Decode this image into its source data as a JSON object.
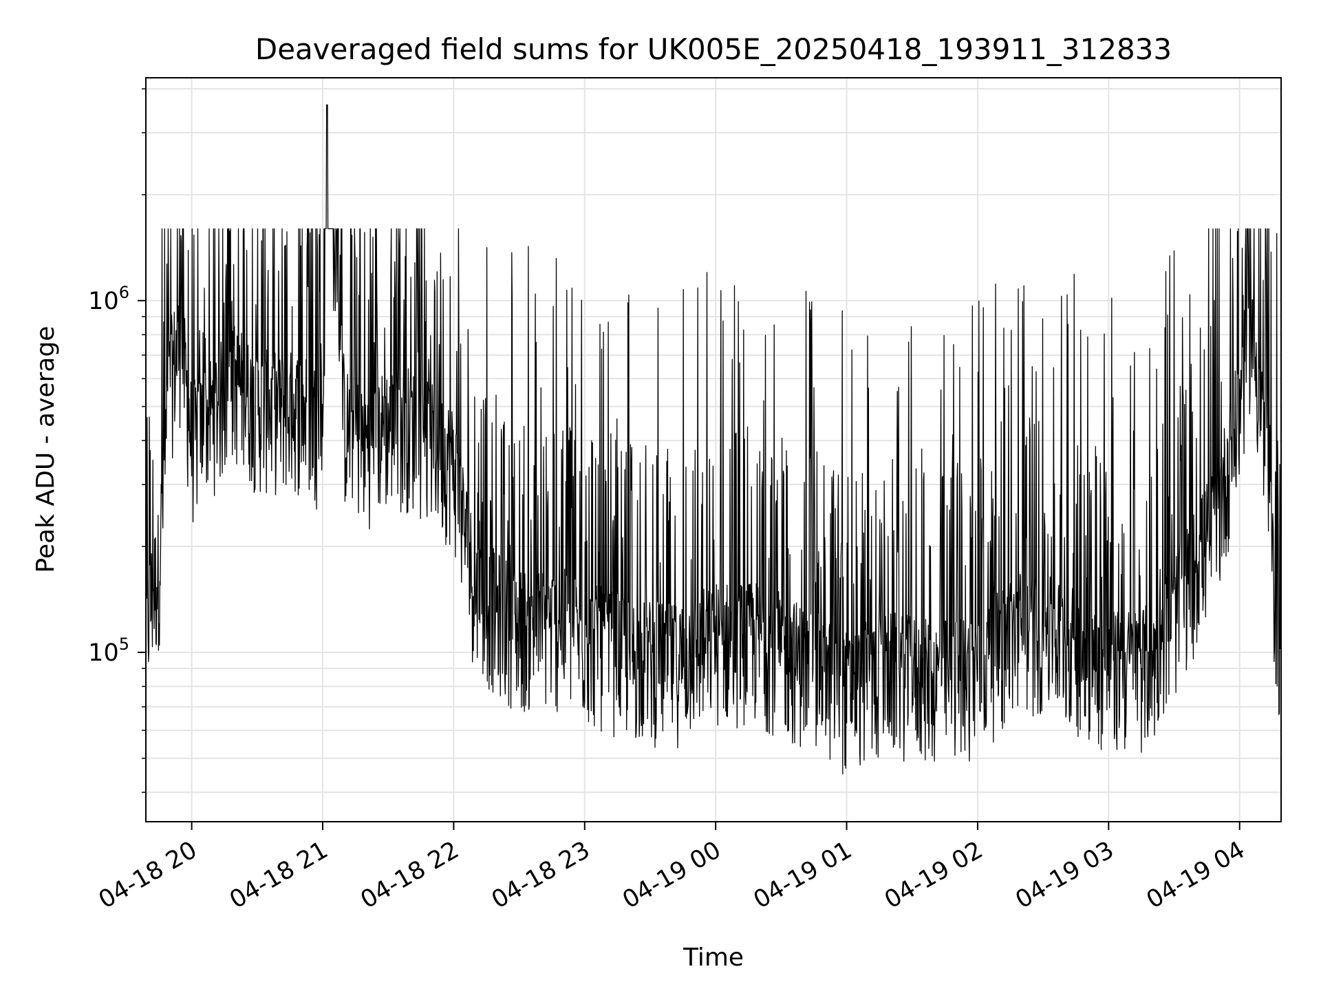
{
  "chart_data": {
    "type": "line",
    "title": "Deaveraged field sums for UK005E_20250418_193911_312833",
    "xlabel": "Time",
    "ylabel": "Peak ADU - average",
    "yscale": "log",
    "ylim": [
      33000,
      4300000
    ],
    "xlim": [
      "04-18 19:39",
      "04-19 04:19"
    ],
    "grid": true,
    "line_color": "#000000",
    "x_ticks": [
      {
        "value": "04-18 20:00",
        "label": "04-18 20"
      },
      {
        "value": "04-18 21:00",
        "label": "04-18 21"
      },
      {
        "value": "04-18 22:00",
        "label": "04-18 22"
      },
      {
        "value": "04-18 23:00",
        "label": "04-18 23"
      },
      {
        "value": "04-19 00:00",
        "label": "04-19 00"
      },
      {
        "value": "04-19 01:00",
        "label": "04-19 01"
      },
      {
        "value": "04-19 02:00",
        "label": "04-19 02"
      },
      {
        "value": "04-19 03:00",
        "label": "04-19 03"
      },
      {
        "value": "04-19 04:00",
        "label": "04-19 04"
      }
    ],
    "y_ticks": [
      {
        "value": 100000,
        "base": "10",
        "exp": "5"
      },
      {
        "value": 1000000,
        "base": "10",
        "exp": "6"
      }
    ],
    "series": [
      {
        "x": [
          "04-18 19:39",
          "04-18 19:45",
          "04-18 19:50",
          "04-18 19:55",
          "04-18 20:00",
          "04-18 20:10",
          "04-18 20:20",
          "04-18 20:30",
          "04-18 20:40",
          "04-18 20:50",
          "04-18 21:00",
          "04-18 21:02",
          "04-18 21:10",
          "04-18 21:20",
          "04-18 21:30",
          "04-18 21:40",
          "04-18 21:50",
          "04-18 22:00",
          "04-18 22:10",
          "04-18 22:30",
          "04-18 22:50",
          "04-18 23:00",
          "04-18 23:20",
          "04-18 23:40",
          "04-19 00:00",
          "04-19 00:20",
          "04-19 00:40",
          "04-19 01:00",
          "04-19 01:20",
          "04-19 01:40",
          "04-19 02:00",
          "04-19 02:20",
          "04-19 02:40",
          "04-19 03:00",
          "04-19 03:20",
          "04-19 03:40",
          "04-19 03:50",
          "04-19 04:00",
          "04-19 04:05",
          "04-19 04:10",
          "04-19 04:15",
          "04-19 04:19"
        ],
        "y": [
          120000,
          180000,
          600000,
          800000,
          400000,
          500000,
          600000,
          500000,
          500000,
          500000,
          450000,
          3600000,
          450000,
          400000,
          450000,
          450000,
          400000,
          350000,
          150000,
          120000,
          120000,
          110000,
          100000,
          95000,
          110000,
          110000,
          95000,
          80000,
          90000,
          85000,
          90000,
          120000,
          110000,
          90000,
          95000,
          180000,
          250000,
          500000,
          900000,
          500000,
          180000,
          100000
        ]
      }
    ]
  }
}
